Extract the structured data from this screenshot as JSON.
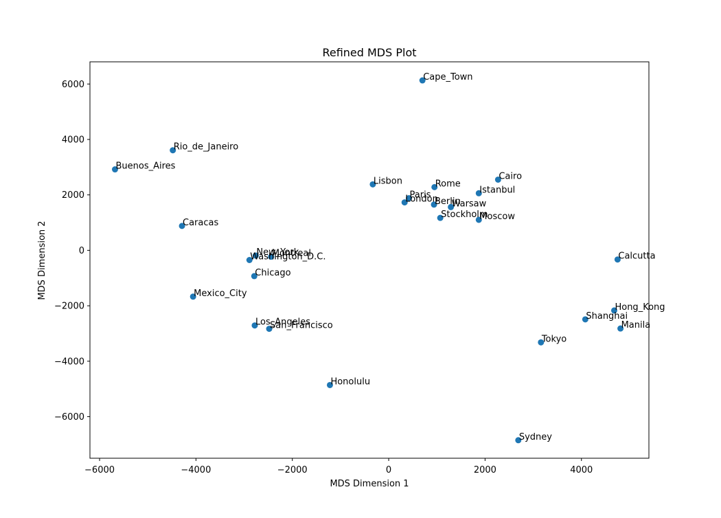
{
  "chart_data": {
    "type": "scatter",
    "title": "Refined MDS Plot",
    "xlabel": "MDS Dimension 1",
    "ylabel": "MDS Dimension 2",
    "xlim": [
      -6200,
      5400
    ],
    "ylim": [
      -7500,
      6800
    ],
    "xticks": [
      -6000,
      -4000,
      -2000,
      0,
      2000,
      4000
    ],
    "yticks": [
      -6000,
      -4000,
      -2000,
      0,
      2000,
      4000,
      6000
    ],
    "xtick_labels": [
      "−6000",
      "−4000",
      "−2000",
      "0",
      "2000",
      "4000"
    ],
    "ytick_labels": [
      "−6000",
      "−4000",
      "−2000",
      "0",
      "2000",
      "4000",
      "6000"
    ],
    "grid": false,
    "marker_color": "#1f77b4",
    "points": [
      {
        "label": "Cape_Town",
        "x": 700,
        "y": 6130
      },
      {
        "label": "Rio_de_Janeiro",
        "x": -4480,
        "y": 3610
      },
      {
        "label": "Buenos_Aires",
        "x": -5680,
        "y": 2920
      },
      {
        "label": "Lisbon",
        "x": -330,
        "y": 2380
      },
      {
        "label": "Cairo",
        "x": 2270,
        "y": 2550
      },
      {
        "label": "Rome",
        "x": 950,
        "y": 2280
      },
      {
        "label": "Istanbul",
        "x": 1870,
        "y": 2060
      },
      {
        "label": "Paris",
        "x": 420,
        "y": 1880
      },
      {
        "label": "London",
        "x": 330,
        "y": 1730
      },
      {
        "label": "Berlin",
        "x": 940,
        "y": 1650
      },
      {
        "label": "Warsaw",
        "x": 1290,
        "y": 1560
      },
      {
        "label": "Stockholm",
        "x": 1070,
        "y": 1170
      },
      {
        "label": "Moscow",
        "x": 1870,
        "y": 1100
      },
      {
        "label": "Caracas",
        "x": -4290,
        "y": 880
      },
      {
        "label": "New_York",
        "x": -2760,
        "y": -190
      },
      {
        "label": "Montreal",
        "x": -2440,
        "y": -230
      },
      {
        "label": "Washington_D.C.",
        "x": -2890,
        "y": -350
      },
      {
        "label": "Chicago",
        "x": -2790,
        "y": -930
      },
      {
        "label": "Mexico_City",
        "x": -4060,
        "y": -1670
      },
      {
        "label": "Los_Angeles",
        "x": -2780,
        "y": -2710
      },
      {
        "label": "San_Francisco",
        "x": -2480,
        "y": -2830
      },
      {
        "label": "Honolulu",
        "x": -1220,
        "y": -4860
      },
      {
        "label": "Calcutta",
        "x": 4750,
        "y": -330
      },
      {
        "label": "Hong_Kong",
        "x": 4680,
        "y": -2170
      },
      {
        "label": "Shanghai",
        "x": 4080,
        "y": -2490
      },
      {
        "label": "Manila",
        "x": 4810,
        "y": -2820
      },
      {
        "label": "Tokyo",
        "x": 3160,
        "y": -3320
      },
      {
        "label": "Sydney",
        "x": 2690,
        "y": -6850
      }
    ]
  }
}
